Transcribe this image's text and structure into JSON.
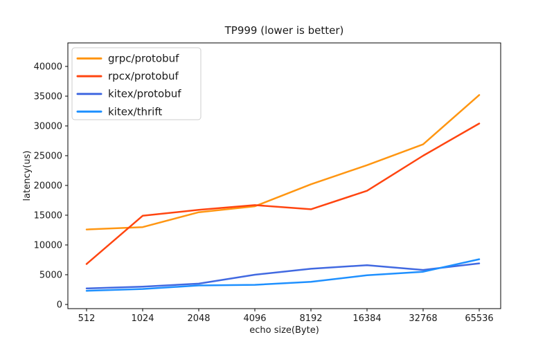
{
  "figure": {
    "background": "#ffffff",
    "spine_color": "#000000"
  },
  "chart_data": {
    "type": "line",
    "title": "TP999 (lower is better)",
    "xlabel": "echo size(Byte)",
    "ylabel": "latency(us)",
    "categories": [
      "512",
      "1024",
      "2048",
      "4096",
      "8192",
      "16384",
      "32768",
      "65536"
    ],
    "yticks": [
      "0",
      "5000",
      "10000",
      "15000",
      "20000",
      "25000",
      "30000",
      "35000",
      "40000"
    ],
    "ytick_values": [
      0,
      5000,
      10000,
      15000,
      20000,
      25000,
      30000,
      35000,
      40000
    ],
    "ylim": [
      -700,
      43950
    ],
    "grid": false,
    "legend_position": "upper left",
    "series": [
      {
        "name": "grpc/protobuf",
        "color": "#ff9612",
        "values": [
          12600,
          13000,
          15500,
          16500,
          20200,
          23400,
          26900,
          35200
        ]
      },
      {
        "name": "rpcx/protobuf",
        "color": "#ff4510",
        "values": [
          6800,
          14900,
          15900,
          16700,
          16000,
          19100,
          25000,
          30400
        ]
      },
      {
        "name": "kitex/protobuf",
        "color": "#4169e1",
        "values": [
          2700,
          3000,
          3500,
          5000,
          6000,
          6600,
          5800,
          6900
        ]
      },
      {
        "name": "kitex/thrift",
        "color": "#1e90ff",
        "values": [
          2300,
          2600,
          3200,
          3300,
          3800,
          4900,
          5500,
          7600
        ]
      }
    ]
  }
}
